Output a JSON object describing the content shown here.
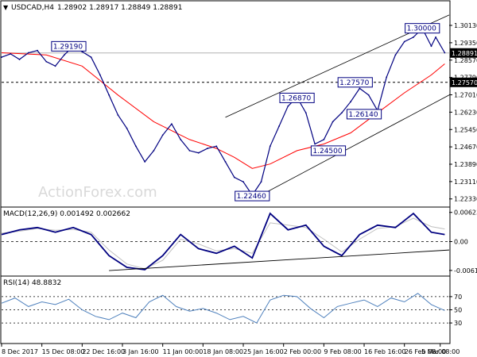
{
  "header": {
    "symbol": "USDCAD,H4",
    "ohlc": "1.28902 1.28917 1.28849 1.28891",
    "indicator_color": "#000080"
  },
  "watermark": "ActionForex.com",
  "chart_data": [
    {
      "type": "line",
      "name": "price",
      "ylim": [
        1.22,
        1.312
      ],
      "yticks": [
        "1.30130",
        "1.29350",
        "1.28570",
        "1.27790",
        "1.27010",
        "1.26230",
        "1.25450",
        "1.24670",
        "1.23890",
        "1.23110",
        "1.22330"
      ],
      "y_tick_values": [
        1.3013,
        1.2935,
        1.2857,
        1.2779,
        1.2701,
        1.2623,
        1.2545,
        1.2467,
        1.2389,
        1.2311,
        1.2233
      ],
      "xlim": [
        0,
        100
      ],
      "series": [
        {
          "values": [
            [
              0,
              1.287
            ],
            [
              2,
              1.2885
            ],
            [
              4,
              1.286
            ],
            [
              6,
              1.289
            ],
            [
              8,
              1.29
            ],
            [
              10,
              1.285
            ],
            [
              12,
              1.283
            ],
            [
              14,
              1.288
            ],
            [
              16,
              1.292
            ],
            [
              18,
              1.2895
            ],
            [
              20,
              1.287
            ],
            [
              22,
              1.279
            ],
            [
              24,
              1.27
            ],
            [
              26,
              1.261
            ],
            [
              28,
              1.255
            ],
            [
              30,
              1.247
            ],
            [
              32,
              1.24
            ],
            [
              34,
              1.245
            ],
            [
              36,
              1.252
            ],
            [
              38,
              1.257
            ],
            [
              40,
              1.25
            ],
            [
              42,
              1.245
            ],
            [
              44,
              1.244
            ],
            [
              46,
              1.246
            ],
            [
              48,
              1.247
            ],
            [
              50,
              1.24
            ],
            [
              52,
              1.233
            ],
            [
              54,
              1.231
            ],
            [
              56,
              1.225
            ],
            [
              58,
              1.231
            ],
            [
              60,
              1.247
            ],
            [
              62,
              1.256
            ],
            [
              64,
              1.265
            ],
            [
              66,
              1.269
            ],
            [
              68,
              1.262
            ],
            [
              70,
              1.248
            ],
            [
              72,
              1.25
            ],
            [
              74,
              1.258
            ],
            [
              76,
              1.262
            ],
            [
              78,
              1.267
            ],
            [
              80,
              1.273
            ],
            [
              82,
              1.27
            ],
            [
              84,
              1.263
            ],
            [
              86,
              1.278
            ],
            [
              88,
              1.288
            ],
            [
              90,
              1.294
            ],
            [
              92,
              1.296
            ],
            [
              94,
              1.3
            ],
            [
              96,
              1.292
            ],
            [
              97,
              1.296
            ],
            [
              99,
              1.289
            ]
          ]
        }
      ],
      "ma": [
        [
          0,
          1.289
        ],
        [
          10,
          1.288
        ],
        [
          18,
          1.283
        ],
        [
          26,
          1.27
        ],
        [
          34,
          1.258
        ],
        [
          42,
          1.25
        ],
        [
          48,
          1.246
        ],
        [
          52,
          1.242
        ],
        [
          56,
          1.237
        ],
        [
          60,
          1.239
        ],
        [
          66,
          1.245
        ],
        [
          72,
          1.248
        ],
        [
          78,
          1.253
        ],
        [
          84,
          1.262
        ],
        [
          90,
          1.271
        ],
        [
          96,
          1.279
        ],
        [
          99,
          1.284
        ]
      ],
      "channel": {
        "upper": [
          [
            50,
            1.26
          ],
          [
            100,
            1.306
          ]
        ],
        "lower": [
          [
            57,
            1.224
          ],
          [
            100,
            1.27
          ]
        ]
      },
      "support_line": 1.2757,
      "current_price": {
        "label": "1.28891",
        "value": 1.28891
      },
      "level_label": {
        "label": "1.27570",
        "value": 1.2757
      },
      "annotations": [
        {
          "label": "1.29190",
          "x": 15,
          "y": 1.2919
        },
        {
          "label": "1.22460",
          "x": 56,
          "y": 1.2246
        },
        {
          "label": "1.26870",
          "x": 66,
          "y": 1.2687
        },
        {
          "label": "1.24500",
          "x": 73,
          "y": 1.245
        },
        {
          "label": "1.26140",
          "x": 81,
          "y": 1.2614
        },
        {
          "label": "1.27570",
          "x": 79,
          "y": 1.2757
        },
        {
          "label": "1.30000",
          "x": 94,
          "y": 1.3
        }
      ]
    },
    {
      "type": "line",
      "name": "MACD(12,26,9) 0.001492 0.002662",
      "ylim": [
        -0.0072,
        0.0072
      ],
      "yticks": [
        "0.006232",
        "0.00",
        "-0.006163"
      ],
      "y_tick_values": [
        0.006232,
        0.0,
        -0.006163
      ],
      "series": [
        {
          "values": [
            [
              0,
              0.0015
            ],
            [
              4,
              0.0025
            ],
            [
              8,
              0.003
            ],
            [
              12,
              0.002
            ],
            [
              16,
              0.003
            ],
            [
              20,
              0.0015
            ],
            [
              24,
              -0.003
            ],
            [
              28,
              -0.0055
            ],
            [
              32,
              -0.006
            ],
            [
              36,
              -0.003
            ],
            [
              40,
              0.0015
            ],
            [
              44,
              -0.0015
            ],
            [
              48,
              -0.0025
            ],
            [
              52,
              -0.001
            ],
            [
              56,
              -0.0035
            ],
            [
              60,
              0.006
            ],
            [
              64,
              0.0025
            ],
            [
              68,
              0.0035
            ],
            [
              72,
              -0.001
            ],
            [
              76,
              -0.003
            ],
            [
              80,
              0.0015
            ],
            [
              84,
              0.0035
            ],
            [
              88,
              0.003
            ],
            [
              92,
              0.006
            ],
            [
              96,
              0.002
            ],
            [
              99,
              0.0015
            ]
          ]
        },
        {
          "values": [
            [
              0,
              0.0018
            ],
            [
              4,
              0.0022
            ],
            [
              8,
              0.0028
            ],
            [
              12,
              0.0024
            ],
            [
              16,
              0.0026
            ],
            [
              20,
              0.002
            ],
            [
              24,
              -0.0018
            ],
            [
              28,
              -0.0048
            ],
            [
              32,
              -0.0058
            ],
            [
              36,
              -0.004
            ],
            [
              40,
              0.0005
            ],
            [
              44,
              -0.0005
            ],
            [
              48,
              -0.002
            ],
            [
              52,
              -0.0015
            ],
            [
              56,
              -0.0025
            ],
            [
              60,
              0.004
            ],
            [
              64,
              0.0035
            ],
            [
              68,
              0.003
            ],
            [
              72,
              0.0005
            ],
            [
              76,
              -0.0022
            ],
            [
              80,
              0.0005
            ],
            [
              84,
              0.0028
            ],
            [
              88,
              0.0032
            ],
            [
              92,
              0.005
            ],
            [
              96,
              0.0032
            ],
            [
              99,
              0.0027
            ]
          ]
        }
      ],
      "trendline": [
        [
          24,
          -0.0062
        ],
        [
          100,
          -0.0018
        ]
      ]
    },
    {
      "type": "line",
      "name": "RSI(14) 48.8832",
      "ylim": [
        0,
        100
      ],
      "yticks": [
        "70",
        "50",
        "30"
      ],
      "y_tick_values": [
        70,
        50,
        30
      ],
      "series": [
        {
          "values": [
            [
              0,
              60
            ],
            [
              3,
              68
            ],
            [
              6,
              55
            ],
            [
              9,
              62
            ],
            [
              12,
              58
            ],
            [
              15,
              66
            ],
            [
              18,
              50
            ],
            [
              21,
              40
            ],
            [
              24,
              35
            ],
            [
              27,
              45
            ],
            [
              30,
              38
            ],
            [
              33,
              62
            ],
            [
              36,
              72
            ],
            [
              39,
              55
            ],
            [
              42,
              48
            ],
            [
              45,
              52
            ],
            [
              48,
              45
            ],
            [
              51,
              35
            ],
            [
              54,
              40
            ],
            [
              57,
              30
            ],
            [
              60,
              65
            ],
            [
              63,
              72
            ],
            [
              66,
              70
            ],
            [
              69,
              52
            ],
            [
              72,
              38
            ],
            [
              75,
              55
            ],
            [
              78,
              60
            ],
            [
              81,
              65
            ],
            [
              84,
              55
            ],
            [
              87,
              68
            ],
            [
              90,
              62
            ],
            [
              93,
              75
            ],
            [
              96,
              58
            ],
            [
              99,
              48.9
            ]
          ]
        }
      ]
    }
  ],
  "x_axis": {
    "labels": [
      "8 Dec 2017",
      "15 Dec 08:00",
      "22 Dec 16:00",
      "3 Jan 16:00",
      "11 Jan 00:00",
      "18 Jan 08:00",
      "25 Jan 16:00",
      "2 Feb 00:00",
      "9 Feb 08:00",
      "16 Feb 16:00",
      "26 Feb 08:00",
      "5 Mar 08:00"
    ],
    "positions": [
      0,
      9,
      18,
      27,
      36,
      45,
      54,
      63,
      72,
      81,
      90,
      98
    ]
  },
  "colors": {
    "price": "#000080",
    "ma": "#ff0000",
    "channel": "#000000",
    "macd": "#000080",
    "signal": "#c0c0c0",
    "rsi": "#4f81bd"
  }
}
